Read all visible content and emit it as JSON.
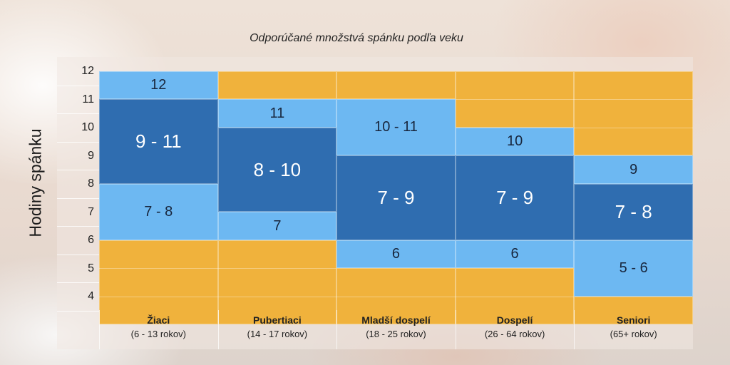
{
  "chart_data": {
    "type": "table",
    "title": "Odporúčané množstvá spánku podľa veku",
    "ylabel": "Hodiny spánku",
    "y_ticks": [
      "12",
      "11",
      "10",
      "9",
      "8",
      "7",
      "6",
      "5",
      "4"
    ],
    "ylim": [
      4,
      12
    ],
    "colors": {
      "recommended": "#2f6db0",
      "may_be_appropriate": "#6db8f2",
      "not_recommended": "#f0b23c"
    },
    "categories": [
      {
        "name": "Žiaci",
        "age": "(6 - 13 rokov)",
        "bands": [
          {
            "from": 12,
            "to": 12,
            "level": "may_be_appropriate",
            "label": "12"
          },
          {
            "from": 9,
            "to": 11,
            "level": "recommended",
            "label": "9 - 11"
          },
          {
            "from": 7,
            "to": 8,
            "level": "may_be_appropriate",
            "label": "7 - 8"
          },
          {
            "from": 4,
            "to": 6,
            "level": "not_recommended",
            "label": ""
          }
        ]
      },
      {
        "name": "Pubertiaci",
        "age": "(14 - 17 rokov)",
        "bands": [
          {
            "from": 12,
            "to": 12,
            "level": "not_recommended",
            "label": ""
          },
          {
            "from": 11,
            "to": 11,
            "level": "may_be_appropriate",
            "label": "11"
          },
          {
            "from": 8,
            "to": 10,
            "level": "recommended",
            "label": "8 - 10"
          },
          {
            "from": 7,
            "to": 7,
            "level": "may_be_appropriate",
            "label": "7"
          },
          {
            "from": 4,
            "to": 6,
            "level": "not_recommended",
            "label": ""
          }
        ]
      },
      {
        "name": "Mladší dospelí",
        "age": "(18 - 25 rokov)",
        "bands": [
          {
            "from": 12,
            "to": 12,
            "level": "not_recommended",
            "label": ""
          },
          {
            "from": 10,
            "to": 11,
            "level": "may_be_appropriate",
            "label": "10 - 11"
          },
          {
            "from": 7,
            "to": 9,
            "level": "recommended",
            "label": "7 - 9"
          },
          {
            "from": 6,
            "to": 6,
            "level": "may_be_appropriate",
            "label": "6"
          },
          {
            "from": 4,
            "to": 5,
            "level": "not_recommended",
            "label": ""
          }
        ]
      },
      {
        "name": "Dospelí",
        "age": "(26 - 64 rokov)",
        "bands": [
          {
            "from": 11,
            "to": 12,
            "level": "not_recommended",
            "label": ""
          },
          {
            "from": 10,
            "to": 10,
            "level": "may_be_appropriate",
            "label": "10"
          },
          {
            "from": 7,
            "to": 9,
            "level": "recommended",
            "label": "7 - 9"
          },
          {
            "from": 6,
            "to": 6,
            "level": "may_be_appropriate",
            "label": "6"
          },
          {
            "from": 4,
            "to": 5,
            "level": "not_recommended",
            "label": ""
          }
        ]
      },
      {
        "name": "Seniori",
        "age": "(65+ rokov)",
        "bands": [
          {
            "from": 10,
            "to": 12,
            "level": "not_recommended",
            "label": ""
          },
          {
            "from": 9,
            "to": 9,
            "level": "may_be_appropriate",
            "label": "9"
          },
          {
            "from": 7,
            "to": 8,
            "level": "recommended",
            "label": "7 - 8"
          },
          {
            "from": 5,
            "to": 6,
            "level": "may_be_appropriate",
            "label": "5 - 6"
          },
          {
            "from": 4,
            "to": 4,
            "level": "not_recommended",
            "label": ""
          }
        ]
      }
    ]
  }
}
